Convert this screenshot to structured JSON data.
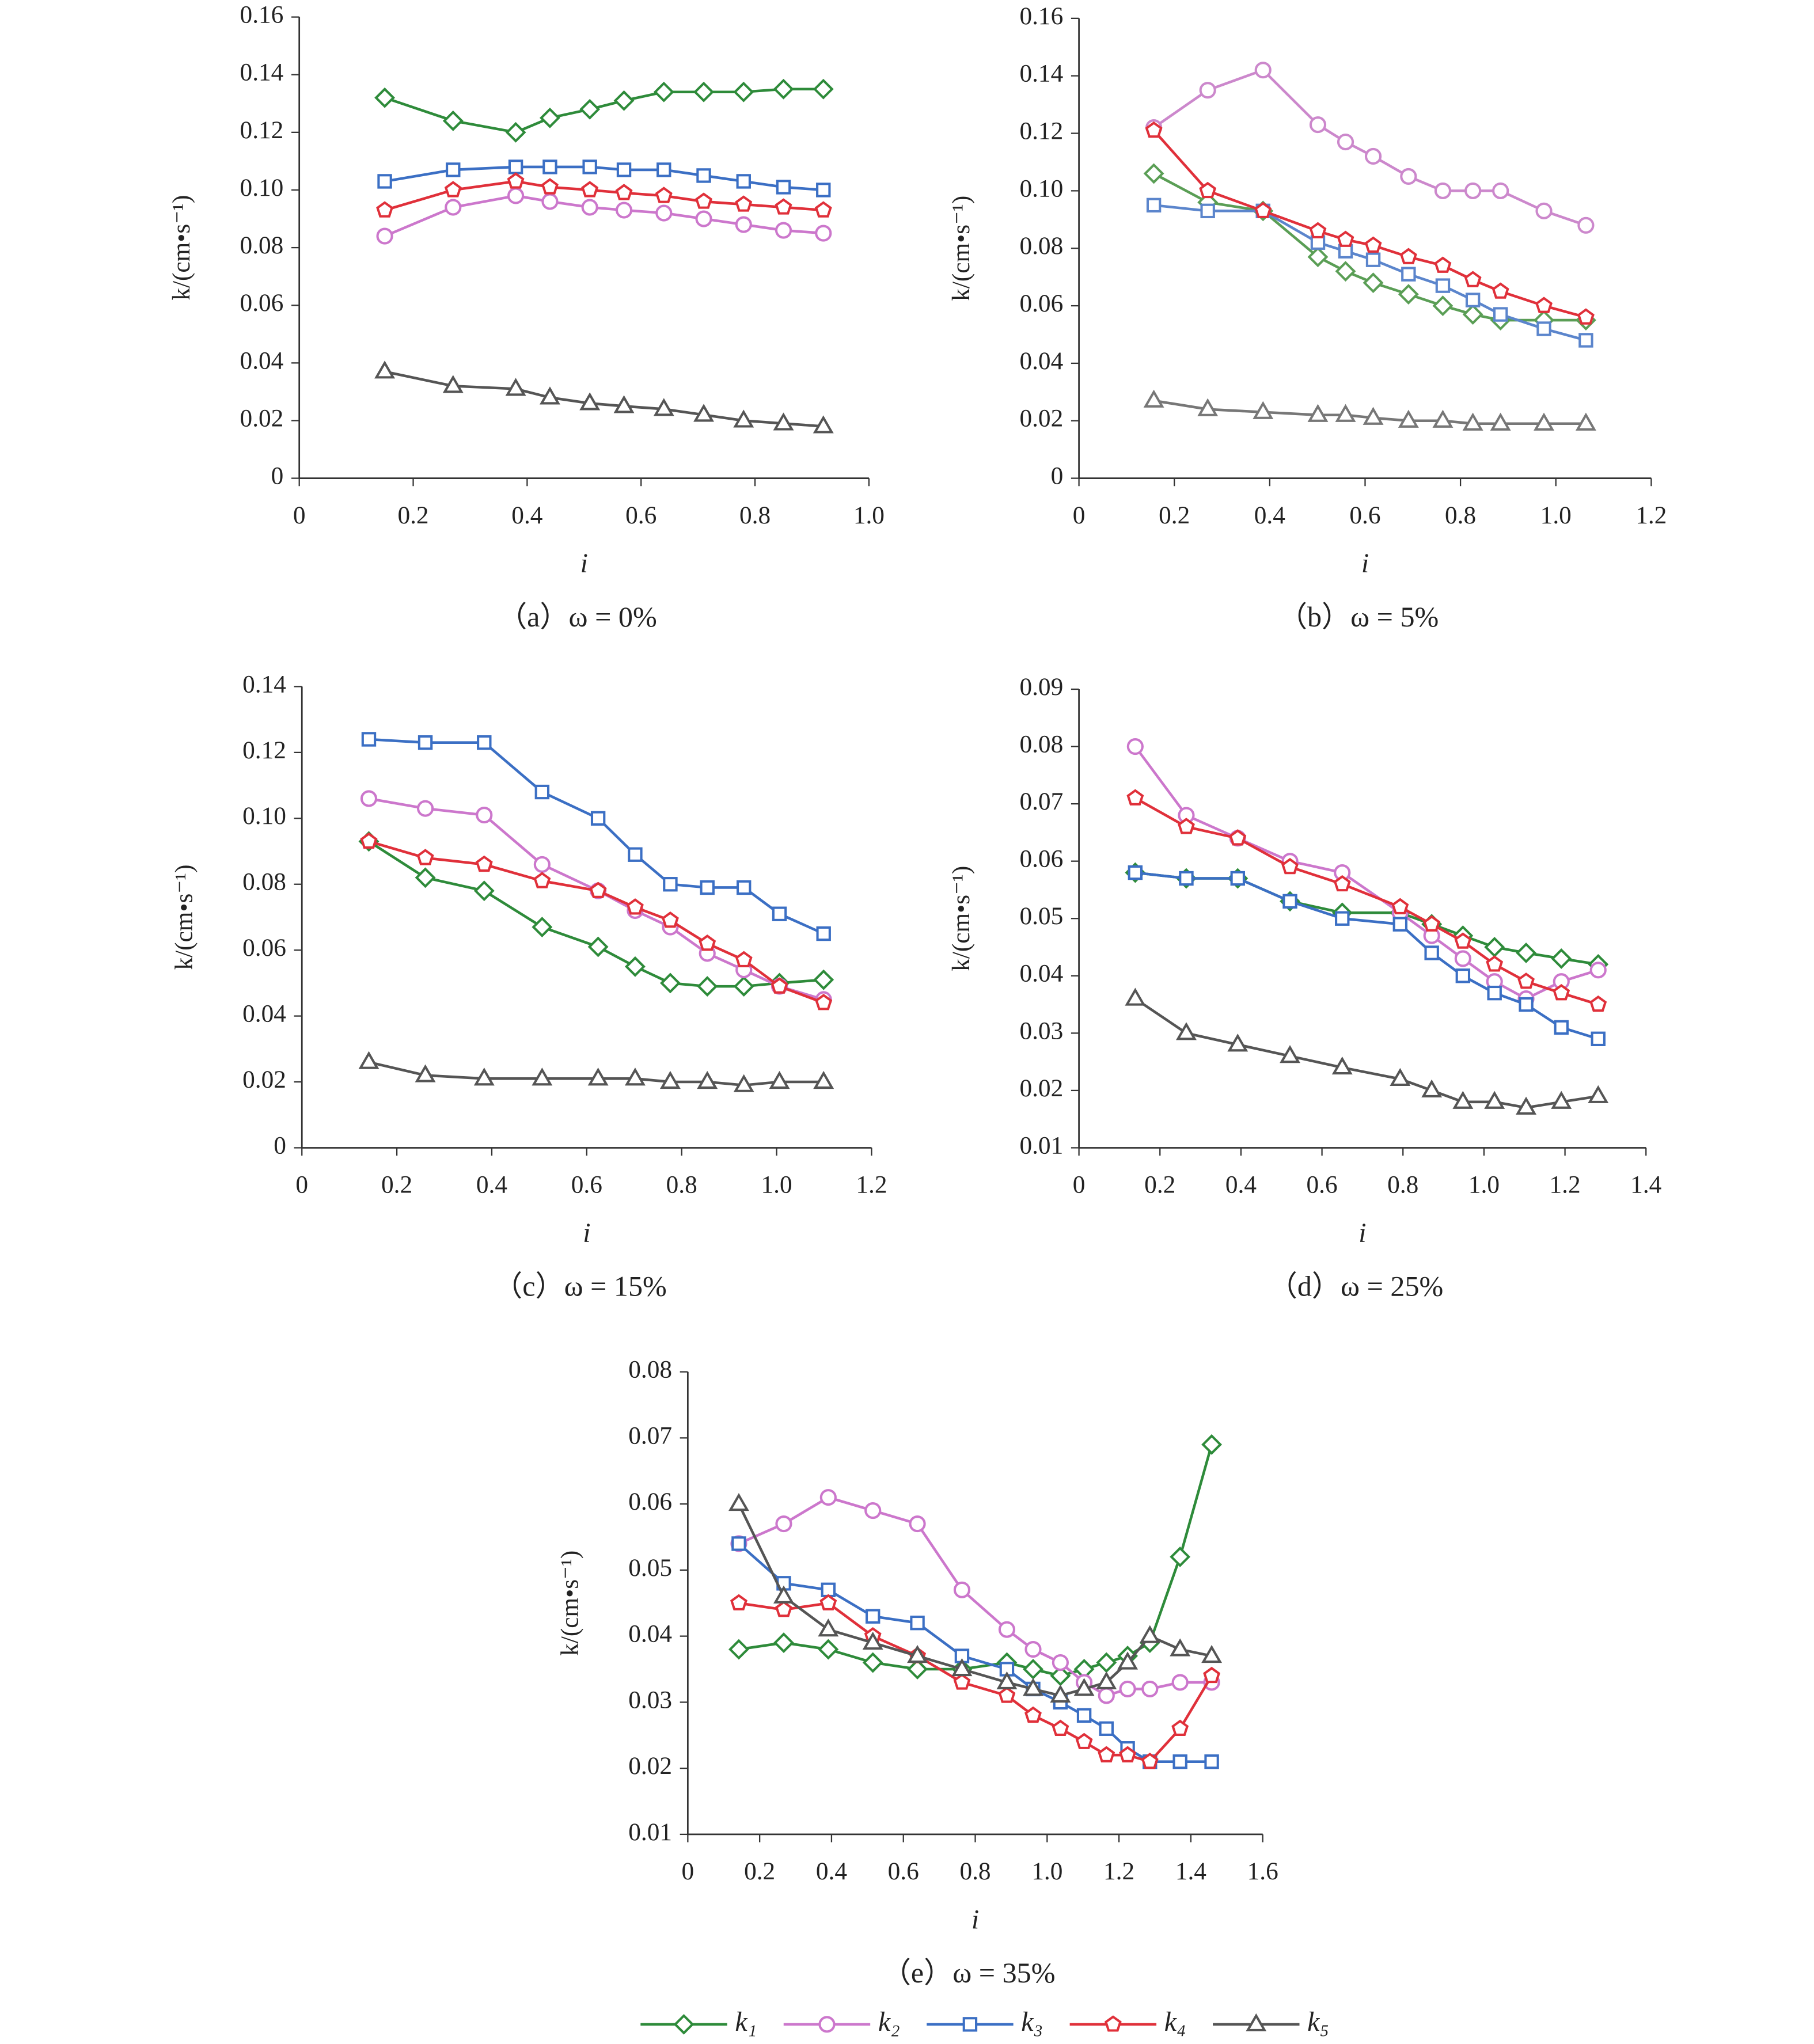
{
  "chart_data": [
    {
      "type": "line",
      "title": "（a）ω = 0%",
      "xlabel": "i",
      "ylabel": "k/(cm•s⁻¹)",
      "xlim": [
        0,
        1.0
      ],
      "xticks": [
        0,
        0.2,
        0.4,
        0.6,
        0.8,
        {
          "value": 1.0,
          "label": "1.0"
        }
      ],
      "ylim": [
        0,
        0.16
      ],
      "yticks": [
        0,
        0.02,
        0.04,
        0.06,
        0.08,
        {
          "value": 0.1,
          "label": "0.10"
        },
        0.12,
        0.14,
        0.16
      ],
      "x": [
        0.15,
        0.27,
        0.38,
        0.44,
        0.51,
        0.57,
        0.64,
        0.71,
        0.78,
        0.85,
        0.92
      ],
      "series": [
        {
          "name": "k₁",
          "color": "#2e8b3a",
          "marker": "diamond",
          "values": [
            0.132,
            0.124,
            0.12,
            0.125,
            0.128,
            0.131,
            0.134,
            0.134,
            0.134,
            0.135,
            0.135
          ]
        },
        {
          "name": "k₂",
          "color": "#cc77cc",
          "marker": "circle",
          "values": [
            0.084,
            0.094,
            0.098,
            0.096,
            0.094,
            0.093,
            0.092,
            0.09,
            0.088,
            0.086,
            0.085
          ]
        },
        {
          "name": "k₃",
          "color": "#3b6fc4",
          "marker": "square",
          "values": [
            0.103,
            0.107,
            0.108,
            0.108,
            0.108,
            0.107,
            0.107,
            0.105,
            0.103,
            0.101,
            0.1
          ]
        },
        {
          "name": "k₄",
          "color": "#e0303a",
          "marker": "pentagon",
          "values": [
            0.093,
            0.1,
            0.103,
            0.101,
            0.1,
            0.099,
            0.098,
            0.096,
            0.095,
            0.094,
            0.093
          ]
        },
        {
          "name": "k₅",
          "color": "#555555",
          "marker": "triangle",
          "values": [
            0.037,
            0.032,
            0.031,
            0.028,
            0.026,
            0.025,
            0.024,
            0.022,
            0.02,
            0.019,
            0.018
          ]
        }
      ]
    },
    {
      "type": "line",
      "title": "（b）ω = 5%",
      "xlabel": "i",
      "ylabel": "k/(cm•s⁻¹)",
      "xlim": [
        0,
        1.2
      ],
      "xticks": [
        0,
        0.2,
        0.4,
        0.6,
        0.8,
        {
          "value": 1.0,
          "label": "1.0"
        },
        1.2
      ],
      "ylim": [
        0,
        0.16
      ],
      "yticks": [
        0,
        0.02,
        0.04,
        0.06,
        0.08,
        {
          "value": 0.1,
          "label": "0.10"
        },
        0.12,
        0.14,
        0.16
      ],
      "x": [
        0.157,
        0.27,
        0.386,
        0.501,
        0.559,
        0.617,
        0.691,
        0.763,
        0.826,
        0.884,
        0.975,
        1.063
      ],
      "series": [
        {
          "name": "k₁",
          "color": "#5a9e55",
          "marker": "diamond",
          "values": [
            0.106,
            0.096,
            0.093,
            0.077,
            0.072,
            0.068,
            0.064,
            0.06,
            0.057,
            0.055,
            0.055,
            0.055
          ]
        },
        {
          "name": "k₂",
          "color": "#cc88cc",
          "marker": "circle",
          "values": [
            0.122,
            0.135,
            0.142,
            0.123,
            0.117,
            0.112,
            0.105,
            0.1,
            0.1,
            0.1,
            0.093,
            0.088
          ]
        },
        {
          "name": "k₃",
          "color": "#5b85cc",
          "marker": "square",
          "values": [
            0.095,
            0.093,
            0.093,
            0.082,
            0.079,
            0.076,
            0.071,
            0.067,
            0.062,
            0.057,
            0.052,
            0.048
          ]
        },
        {
          "name": "k₄",
          "color": "#e0303a",
          "marker": "pentagon",
          "values": [
            0.121,
            0.1,
            0.093,
            0.086,
            0.083,
            0.081,
            0.077,
            0.074,
            0.069,
            0.065,
            0.06,
            0.056
          ]
        },
        {
          "name": "k₅",
          "color": "#777777",
          "marker": "triangle",
          "values": [
            0.027,
            0.024,
            0.023,
            0.022,
            0.022,
            0.021,
            0.02,
            0.02,
            0.019,
            0.019,
            0.019,
            0.019
          ]
        }
      ]
    },
    {
      "type": "line",
      "title": "（c）ω = 15%",
      "xlabel": "i",
      "ylabel": "k/(cm•s⁻¹)",
      "xlim": [
        0,
        1.2
      ],
      "xticks": [
        0,
        0.2,
        0.4,
        0.6,
        0.8,
        {
          "value": 1.0,
          "label": "1.0"
        },
        1.2
      ],
      "ylim": [
        0,
        0.14
      ],
      "yticks": [
        0,
        0.02,
        0.04,
        0.06,
        0.08,
        {
          "value": 0.1,
          "label": "0.10"
        },
        0.12,
        0.14
      ],
      "x": [
        0.141,
        0.26,
        0.384,
        0.506,
        0.624,
        0.702,
        0.776,
        0.854,
        0.931,
        1.006,
        1.099
      ],
      "series": [
        {
          "name": "k₁",
          "color": "#2e8b3a",
          "marker": "diamond",
          "values": [
            0.093,
            0.082,
            0.078,
            0.067,
            0.061,
            0.055,
            0.05,
            0.049,
            0.049,
            0.05,
            0.051
          ]
        },
        {
          "name": "k₂",
          "color": "#cc77cc",
          "marker": "circle",
          "values": [
            0.106,
            0.103,
            0.101,
            0.086,
            0.078,
            0.072,
            0.067,
            0.059,
            0.054,
            0.049,
            0.045
          ]
        },
        {
          "name": "k₃",
          "color": "#3b6fc4",
          "marker": "square",
          "values": [
            0.124,
            0.123,
            0.123,
            0.108,
            0.1,
            0.089,
            0.08,
            0.079,
            0.079,
            0.071,
            0.065
          ]
        },
        {
          "name": "k₄",
          "color": "#e0303a",
          "marker": "pentagon",
          "values": [
            0.093,
            0.088,
            0.086,
            0.081,
            0.078,
            0.073,
            0.069,
            0.062,
            0.057,
            0.049,
            0.044
          ]
        },
        {
          "name": "k₅",
          "color": "#555555",
          "marker": "triangle",
          "values": [
            0.026,
            0.022,
            0.021,
            0.021,
            0.021,
            0.021,
            0.02,
            0.02,
            0.019,
            0.02,
            0.02
          ]
        }
      ]
    },
    {
      "type": "line",
      "title": "（d）ω = 25%",
      "xlabel": "i",
      "ylabel": "k/(cm•s⁻¹)",
      "xlim": [
        0,
        1.4
      ],
      "xticks": [
        0,
        0.2,
        0.4,
        0.6,
        0.8,
        {
          "value": 1.0,
          "label": "1.0"
        },
        1.2,
        1.4
      ],
      "ylim": [
        0.01,
        0.09
      ],
      "yticks": [
        0.01,
        0.02,
        0.03,
        0.04,
        0.05,
        0.06,
        0.07,
        0.08,
        0.09
      ],
      "x": [
        0.139,
        0.265,
        0.392,
        0.521,
        0.65,
        0.793,
        0.871,
        0.948,
        1.026,
        1.104,
        1.191,
        1.282
      ],
      "series": [
        {
          "name": "k₁",
          "color": "#2e8b3a",
          "marker": "diamond",
          "values": [
            0.058,
            0.057,
            0.057,
            0.053,
            0.051,
            0.051,
            0.049,
            0.047,
            0.045,
            0.044,
            0.043,
            0.042
          ]
        },
        {
          "name": "k₂",
          "color": "#cc77cc",
          "marker": "circle",
          "values": [
            0.08,
            0.068,
            0.064,
            0.06,
            0.058,
            0.051,
            0.047,
            0.043,
            0.039,
            0.036,
            0.039,
            0.041
          ]
        },
        {
          "name": "k₃",
          "color": "#3b6fc4",
          "marker": "square",
          "values": [
            0.058,
            0.057,
            0.057,
            0.053,
            0.05,
            0.049,
            0.044,
            0.04,
            0.037,
            0.035,
            0.031,
            0.029
          ]
        },
        {
          "name": "k₄",
          "color": "#e0303a",
          "marker": "pentagon",
          "values": [
            0.071,
            0.066,
            0.064,
            0.059,
            0.056,
            0.052,
            0.049,
            0.046,
            0.042,
            0.039,
            0.037,
            0.035
          ]
        },
        {
          "name": "k₅",
          "color": "#555555",
          "marker": "triangle",
          "values": [
            0.036,
            0.03,
            0.028,
            0.026,
            0.024,
            0.022,
            0.02,
            0.018,
            0.018,
            0.017,
            0.018,
            0.019
          ]
        }
      ]
    },
    {
      "type": "line",
      "title": "（e）ω = 35%",
      "xlabel": "i",
      "ylabel": "k/(cm•s⁻¹)",
      "xlim": [
        0,
        1.6
      ],
      "xticks": [
        0,
        0.2,
        0.4,
        0.6,
        0.8,
        {
          "value": 1.0,
          "label": "1.0"
        },
        1.2,
        1.4,
        1.6
      ],
      "ylim": [
        0.01,
        0.08
      ],
      "yticks": [
        0.01,
        0.02,
        0.03,
        0.04,
        0.05,
        0.06,
        0.07,
        0.08
      ],
      "x": [
        0.142,
        0.267,
        0.391,
        0.515,
        0.639,
        0.763,
        0.888,
        0.961,
        1.037,
        1.103,
        1.165,
        1.224,
        1.286,
        1.37,
        1.458
      ],
      "series": [
        {
          "name": "k₁",
          "color": "#2e8b3a",
          "marker": "diamond",
          "values": [
            0.038,
            0.039,
            0.038,
            0.036,
            0.035,
            0.035,
            0.036,
            0.035,
            0.034,
            0.035,
            0.036,
            0.037,
            0.039,
            0.052,
            0.069
          ]
        },
        {
          "name": "k₂",
          "color": "#cc77cc",
          "marker": "circle",
          "values": [
            0.054,
            0.057,
            0.061,
            0.059,
            0.057,
            0.047,
            0.041,
            0.038,
            0.036,
            0.033,
            0.031,
            0.032,
            0.032,
            0.033,
            0.033
          ]
        },
        {
          "name": "k₃",
          "color": "#3b6fc4",
          "marker": "square",
          "values": [
            0.054,
            0.048,
            0.047,
            0.043,
            0.042,
            0.037,
            0.035,
            0.032,
            0.03,
            0.028,
            0.026,
            0.023,
            0.021,
            0.021,
            0.021
          ]
        },
        {
          "name": "k₄",
          "color": "#e0303a",
          "marker": "pentagon",
          "values": [
            0.045,
            0.044,
            0.045,
            0.04,
            0.037,
            0.033,
            0.031,
            0.028,
            0.026,
            0.024,
            0.022,
            0.022,
            0.021,
            0.026,
            0.034
          ]
        },
        {
          "name": "k₅",
          "color": "#555555",
          "marker": "triangle",
          "values": [
            0.06,
            0.046,
            0.041,
            0.039,
            0.037,
            0.035,
            0.033,
            0.032,
            0.031,
            0.032,
            0.033,
            0.036,
            0.04,
            0.038,
            0.037
          ]
        }
      ]
    }
  ]
}
